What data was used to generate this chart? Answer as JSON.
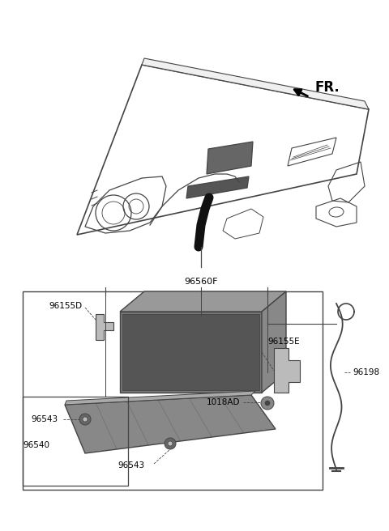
{
  "background_color": "#ffffff",
  "line_color": "#444444",
  "text_color": "#000000",
  "dark_color": "#333333",
  "mid_color": "#888888",
  "light_color": "#bbbbbb",
  "fr_label": "FR.",
  "label_96560F": "96560F",
  "label_96155D": "96155D",
  "label_96155E": "96155E",
  "label_96198": "96198",
  "label_1018AD": "1018AD",
  "label_96543a": "96543",
  "label_96543b": "96543",
  "label_96540": "96540"
}
